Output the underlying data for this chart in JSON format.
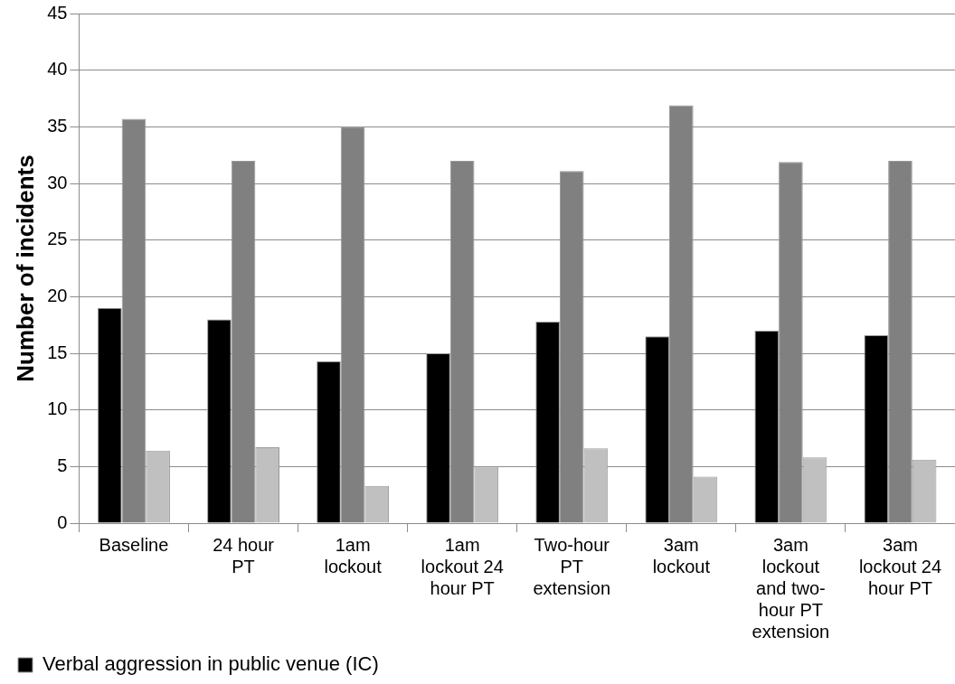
{
  "chart_data": {
    "type": "bar",
    "ylabel": "Number of incidents",
    "categories": [
      "Baseline",
      "24 hour PT",
      "1am lockout",
      "1am lockout 24 hour PT",
      "Two-hour PT extension",
      "3am lockout",
      "3am lockout and two-hour PT extension",
      "3am lockout 24 hour PT"
    ],
    "series": [
      {
        "name": "Verbal aggression in public venue (IC)",
        "color": "#000000",
        "values": [
          19,
          18,
          14.3,
          15,
          17.8,
          16.5,
          17,
          16.6
        ]
      },
      {
        "color": "#808080",
        "values": [
          35.7,
          32,
          35,
          32,
          31.1,
          36.9,
          31.9,
          32
        ]
      },
      {
        "color": "#c0c0c0",
        "values": [
          6.4,
          6.7,
          3.3,
          5,
          6.6,
          4.1,
          5.8,
          5.6
        ]
      }
    ],
    "ylim": [
      0,
      45
    ],
    "yticks": [
      0,
      5,
      10,
      15,
      20,
      25,
      30,
      35,
      40,
      45
    ],
    "grid": "y",
    "legend": "bottom left"
  }
}
